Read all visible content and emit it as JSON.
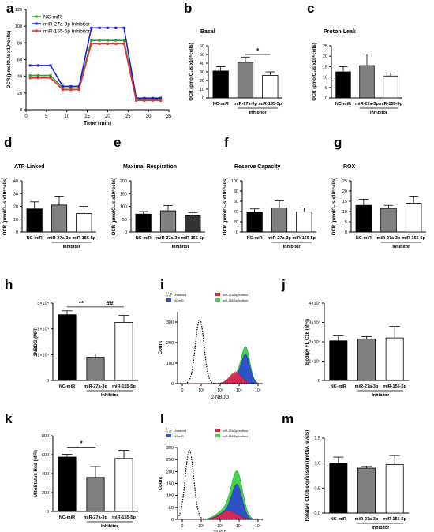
{
  "colors": {
    "black_bar": "#000000",
    "gray_bar": "#808080",
    "dark_bar": "#333333",
    "white_bar": "#ffffff",
    "nc": "#2ca02c",
    "mir27": "#1f1fd6",
    "mir155": "#e8322e",
    "flow_red": "#e0284a",
    "flow_blue": "#2f52c8",
    "flow_green": "#3fd44a"
  },
  "inhibitor_label": "Inhibitor",
  "bar_categories": [
    "NC-miR",
    "miR-27a-3p",
    "miR-155-5p"
  ],
  "chart_data": [
    {
      "id": "a",
      "type": "line",
      "letter": "a",
      "ylabel": "OCR (pmolO₂/s x10⁶cells)",
      "xlabel": "Time (min)",
      "xlim": [
        0,
        35
      ],
      "ylim": [
        0,
        120
      ],
      "xticks": [
        0,
        5,
        10,
        15,
        20,
        25,
        30,
        35
      ],
      "yticks": [
        0,
        20,
        40,
        60,
        80,
        100,
        120
      ],
      "legend_position": "top-left",
      "x": [
        1,
        3,
        6,
        9,
        11,
        13,
        16,
        18,
        20,
        22,
        24,
        27,
        29,
        31,
        33
      ],
      "series": [
        {
          "name": "NC-miR",
          "color_key": "nc",
          "values": [
            41,
            41,
            41,
            26,
            26,
            26,
            83,
            83,
            83,
            83,
            83,
            12,
            12,
            12,
            12
          ]
        },
        {
          "name": "miR-27a-3p Inhibitor",
          "color_key": "mir27",
          "values": [
            53,
            53,
            53,
            28,
            28,
            28,
            98,
            98,
            98,
            98,
            98,
            14,
            14,
            14,
            14
          ]
        },
        {
          "name": "miR-155-5p Inhibitor",
          "color_key": "mir155",
          "values": [
            38,
            38,
            38,
            24,
            24,
            24,
            79,
            79,
            79,
            79,
            79,
            11,
            11,
            11,
            11
          ]
        }
      ]
    },
    {
      "id": "b",
      "type": "bar",
      "letter": "b",
      "title": "Basal",
      "ylabel": "OCR (pmolO₂/s x10⁶cells)",
      "ylim": [
        0,
        60
      ],
      "yticks": [
        0,
        10,
        20,
        30,
        40,
        50,
        60
      ],
      "values": [
        31,
        41,
        26
      ],
      "errors": [
        5,
        6,
        4
      ],
      "fills": [
        "black_bar",
        "gray_bar",
        "white_bar"
      ],
      "annotations": [
        {
          "text": "*",
          "from": 1,
          "to": 2,
          "y": 50
        }
      ]
    },
    {
      "id": "c",
      "type": "bar",
      "letter": "c",
      "title": "Proton-Leak",
      "ylabel": "OCR (pmolO₂/s x10⁶cells)",
      "ylim": [
        0,
        25
      ],
      "yticks": [
        0,
        5,
        10,
        15,
        20,
        25
      ],
      "values": [
        12.5,
        15.5,
        10.5
      ],
      "errors": [
        2.5,
        5.5,
        1.5
      ],
      "fills": [
        "black_bar",
        "gray_bar",
        "white_bar"
      ]
    },
    {
      "id": "d",
      "type": "bar",
      "letter": "d",
      "title": "ATP-Linked",
      "ylabel": "OCR (pmolO₂/s x10⁶cells)",
      "ylim": [
        0,
        40
      ],
      "yticks": [
        0,
        10,
        20,
        30,
        40
      ],
      "values": [
        18,
        21,
        14.5
      ],
      "errors": [
        5.5,
        7,
        5.5
      ],
      "fills": [
        "black_bar",
        "gray_bar",
        "white_bar"
      ]
    },
    {
      "id": "e",
      "type": "bar",
      "letter": "e",
      "title": "Maximal Respiration",
      "ylabel": "OCR (pmolO₂/s x10⁶cells)",
      "ylim": [
        0,
        200
      ],
      "yticks": [
        0,
        50,
        100,
        150,
        200
      ],
      "values": [
        70,
        83,
        64
      ],
      "errors": [
        10,
        20,
        12
      ],
      "fills": [
        "black_bar",
        "gray_bar",
        "dark_bar"
      ]
    },
    {
      "id": "f",
      "type": "bar",
      "letter": "f",
      "title": "Reserve Capacity",
      "ylabel": "OCR (pmolO₂/s x10⁶cells)",
      "ylim": [
        0,
        100
      ],
      "yticks": [
        0,
        20,
        40,
        60,
        80,
        100
      ],
      "values": [
        38,
        47,
        39
      ],
      "errors": [
        7,
        14,
        8
      ],
      "fills": [
        "black_bar",
        "gray_bar",
        "white_bar"
      ]
    },
    {
      "id": "g",
      "type": "bar",
      "letter": "g",
      "title": "ROX",
      "ylabel": "OCR (pmolO₂/s x10⁶cells)",
      "ylim": [
        0,
        25
      ],
      "yticks": [
        0,
        5,
        10,
        15,
        20,
        25
      ],
      "values": [
        13,
        11.5,
        14
      ],
      "errors": [
        3,
        1.5,
        3.5
      ],
      "fills": [
        "black_bar",
        "gray_bar",
        "white_bar"
      ]
    },
    {
      "id": "h",
      "type": "bar",
      "letter": "h",
      "ylabel": "2NBDG (MFI)",
      "ylim": [
        0,
        30000
      ],
      "ytick_values": [
        0,
        10000,
        20000,
        30000
      ],
      "yticks": [
        "0",
        "1×10⁴",
        "2×10⁴",
        "3×10⁴"
      ],
      "values": [
        25500,
        9000,
        22500
      ],
      "errors": [
        1500,
        1300,
        2800
      ],
      "fills": [
        "black_bar",
        "gray_bar",
        "white_bar"
      ],
      "annotations": [
        {
          "text": "**",
          "from": 0,
          "to": 1,
          "y": 28500
        },
        {
          "text": "##",
          "from": 1,
          "to": 2,
          "y": 28500
        }
      ]
    },
    {
      "id": "j",
      "type": "bar",
      "letter": "j",
      "ylabel": "Bodipy FL C16 (MFI)",
      "ylim": [
        0,
        40000
      ],
      "ytick_values": [
        0,
        10000,
        20000,
        30000,
        40000
      ],
      "yticks": [
        "0",
        "1×10⁴",
        "2×10⁴",
        "3×10⁴",
        "4×10⁴"
      ],
      "values": [
        20500,
        21500,
        22000
      ],
      "errors": [
        2500,
        1200,
        6000
      ],
      "fills": [
        "black_bar",
        "gray_bar",
        "white_bar"
      ]
    },
    {
      "id": "k",
      "type": "bar",
      "letter": "k",
      "ylabel": "MitoStatus Red (MFI)",
      "ylim": [
        0,
        800
      ],
      "yticks": [
        0,
        200,
        400,
        600,
        800
      ],
      "values": [
        575,
        360,
        560
      ],
      "errors": [
        30,
        115,
        85
      ],
      "fills": [
        "black_bar",
        "gray_bar",
        "white_bar"
      ],
      "annotations": [
        {
          "text": "*",
          "from": 0,
          "to": 1,
          "y": 680
        }
      ]
    },
    {
      "id": "m",
      "type": "bar",
      "letter": "m",
      "ylabel": "Relative CD36 expression (mRNA levels)",
      "ylim": [
        0,
        1.5
      ],
      "yticks": [
        0.0,
        0.5,
        1.0,
        1.5
      ],
      "values": [
        1.0,
        0.9,
        0.97
      ],
      "errors": [
        0.12,
        0.03,
        0.18
      ],
      "fills": [
        "black_bar",
        "gray_bar",
        "white_bar"
      ]
    },
    {
      "id": "i",
      "type": "area",
      "letter": "i",
      "xlabel": "2-NBDG",
      "ylabel": "Count",
      "ylim": [
        0,
        350
      ],
      "yticks": [
        0,
        100,
        200,
        300
      ],
      "xticks": [
        "0",
        "10²",
        "10³",
        "10⁴",
        "10⁵"
      ],
      "legend": [
        {
          "name": "Unstained",
          "style": "dotted"
        },
        {
          "name": "NC-miR",
          "color_key": "flow_blue"
        },
        {
          "name": "miR-27a-3p Inhibitor",
          "color_key": "flow_red"
        },
        {
          "name": "miR-155-5p Inhibitor",
          "color_key": "flow_green"
        }
      ]
    },
    {
      "id": "l",
      "type": "area",
      "letter": "l",
      "xlabel": "TMRE",
      "ylabel": "Count",
      "ylim": [
        0,
        300
      ],
      "yticks": [
        0,
        50,
        100,
        150,
        200,
        250,
        300
      ],
      "xticks": [
        "0",
        "10²",
        "10³",
        "10⁴",
        "10⁵"
      ],
      "legend": [
        {
          "name": "Unstained",
          "style": "dotted"
        },
        {
          "name": "NC-miR",
          "color_key": "flow_blue"
        },
        {
          "name": "miR-27a-3p Inhibitor",
          "color_key": "flow_red"
        },
        {
          "name": "miR-155-5p Inhibitor",
          "color_key": "flow_green"
        }
      ]
    }
  ]
}
